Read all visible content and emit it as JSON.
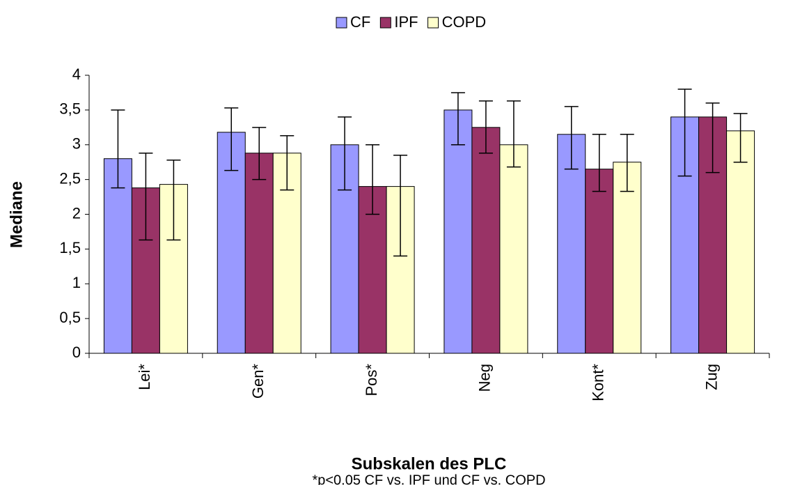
{
  "chart_data": {
    "type": "bar",
    "categories": [
      "Lei*",
      "Gen*",
      "Pos*",
      "Neg",
      "Kont*",
      "Zug"
    ],
    "series": [
      {
        "name": "CF",
        "color": "#9999ff",
        "values": [
          2.8,
          3.18,
          3.0,
          3.5,
          3.15,
          3.4
        ],
        "lower": [
          2.38,
          2.63,
          2.35,
          3.0,
          2.65,
          2.55
        ],
        "upper": [
          3.5,
          3.53,
          3.4,
          3.75,
          3.55,
          3.8
        ]
      },
      {
        "name": "IPF",
        "color": "#993366",
        "values": [
          2.38,
          2.88,
          2.4,
          3.25,
          2.65,
          3.4
        ],
        "lower": [
          1.63,
          2.5,
          2.0,
          2.88,
          2.33,
          2.6
        ],
        "upper": [
          2.88,
          3.25,
          3.0,
          3.63,
          3.15,
          3.6
        ]
      },
      {
        "name": "COPD",
        "color": "#ffffcc",
        "values": [
          2.43,
          2.88,
          2.4,
          3.0,
          2.75,
          3.2
        ],
        "lower": [
          1.63,
          2.35,
          1.4,
          2.68,
          2.33,
          2.75
        ],
        "upper": [
          2.78,
          3.13,
          2.85,
          3.63,
          3.15,
          3.45
        ]
      }
    ],
    "ylim": [
      0,
      4
    ],
    "yticks": [
      0,
      {
        "value": 0.5,
        "label": "0,5"
      },
      1,
      {
        "value": 1.5,
        "label": "1,5"
      },
      2,
      {
        "value": 2.5,
        "label": "2,5"
      },
      3,
      {
        "value": 3.5,
        "label": "3,5"
      },
      4
    ],
    "ylabel": "Mediane",
    "xlabel": "Subskalen des PLC",
    "annotation": "*p<0.05 CF vs. IPF und CF vs. COPD",
    "legend": "top"
  }
}
